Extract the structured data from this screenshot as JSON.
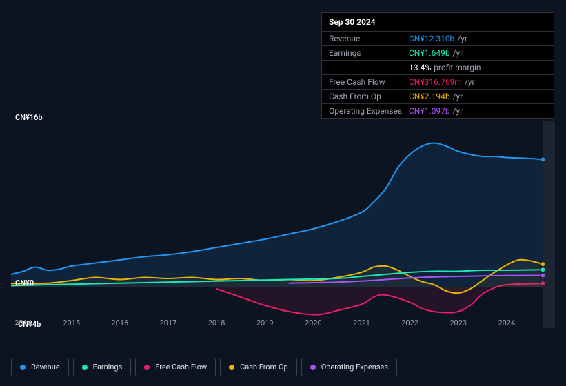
{
  "tooltip": {
    "date": "Sep 30 2024",
    "rows": [
      {
        "label": "Revenue",
        "value": "CN¥12.310b",
        "color": "#2196f3",
        "suffix": "/yr"
      },
      {
        "label": "Earnings",
        "value": "CN¥1.649b",
        "color": "#1de9b6",
        "suffix": "/yr"
      },
      {
        "label": "",
        "value": "13.4%",
        "color": "#ffffff",
        "suffix": "profit margin"
      },
      {
        "label": "Free Cash Flow",
        "value": "CN¥316.769m",
        "color": "#e91e63",
        "suffix": "/yr"
      },
      {
        "label": "Cash From Op",
        "value": "CN¥2.194b",
        "color": "#eab308",
        "suffix": "/yr"
      },
      {
        "label": "Operating Expenses",
        "value": "CN¥1.097b",
        "color": "#a855f7",
        "suffix": "/yr"
      }
    ]
  },
  "chart": {
    "type": "line",
    "background": "#0d1421",
    "y_max": 16,
    "y_min": -4,
    "y_labels": [
      {
        "text": "CN¥16b",
        "v": 16
      },
      {
        "text": "CN¥0",
        "v": 0
      },
      {
        "text": "-CN¥4b",
        "v": -4
      }
    ],
    "x_min": 2013.75,
    "x_max": 2025.0,
    "x_ticks": [
      2014,
      2015,
      2016,
      2017,
      2018,
      2019,
      2020,
      2021,
      2022,
      2023,
      2024
    ],
    "forecast_start": 2024.75,
    "series": {
      "revenue": {
        "label": "Revenue",
        "color": "#2196f3",
        "area": true,
        "area_opacity": 0.12,
        "points": [
          [
            2013.75,
            1.2
          ],
          [
            2014.0,
            1.5
          ],
          [
            2014.25,
            1.9
          ],
          [
            2014.5,
            1.6
          ],
          [
            2014.75,
            1.7
          ],
          [
            2015.0,
            2.0
          ],
          [
            2015.5,
            2.3
          ],
          [
            2016.0,
            2.6
          ],
          [
            2016.5,
            2.9
          ],
          [
            2017.0,
            3.1
          ],
          [
            2017.5,
            3.4
          ],
          [
            2018.0,
            3.8
          ],
          [
            2018.5,
            4.2
          ],
          [
            2019.0,
            4.6
          ],
          [
            2019.5,
            5.1
          ],
          [
            2020.0,
            5.6
          ],
          [
            2020.5,
            6.3
          ],
          [
            2021.0,
            7.2
          ],
          [
            2021.25,
            8.2
          ],
          [
            2021.5,
            9.5
          ],
          [
            2021.75,
            11.5
          ],
          [
            2022.0,
            12.8
          ],
          [
            2022.25,
            13.6
          ],
          [
            2022.5,
            13.9
          ],
          [
            2022.75,
            13.6
          ],
          [
            2023.0,
            13.1
          ],
          [
            2023.25,
            12.8
          ],
          [
            2023.5,
            12.6
          ],
          [
            2023.75,
            12.6
          ],
          [
            2024.0,
            12.5
          ],
          [
            2024.5,
            12.4
          ],
          [
            2024.75,
            12.31
          ]
        ]
      },
      "earnings": {
        "label": "Earnings",
        "color": "#1de9b6",
        "area": false,
        "points": [
          [
            2013.75,
            0.1
          ],
          [
            2014.5,
            0.2
          ],
          [
            2015.5,
            0.3
          ],
          [
            2016.5,
            0.4
          ],
          [
            2017.5,
            0.5
          ],
          [
            2018.5,
            0.6
          ],
          [
            2019.5,
            0.7
          ],
          [
            2020.5,
            0.8
          ],
          [
            2021.0,
            1.0
          ],
          [
            2021.5,
            1.2
          ],
          [
            2022.0,
            1.4
          ],
          [
            2022.5,
            1.5
          ],
          [
            2023.0,
            1.5
          ],
          [
            2023.5,
            1.6
          ],
          [
            2024.0,
            1.6
          ],
          [
            2024.75,
            1.65
          ]
        ]
      },
      "fcf": {
        "label": "Free Cash Flow",
        "color": "#e91e63",
        "area": true,
        "area_opacity": 0.1,
        "points": [
          [
            2018.0,
            -0.2
          ],
          [
            2018.5,
            -1.0
          ],
          [
            2019.0,
            -1.8
          ],
          [
            2019.5,
            -2.4
          ],
          [
            2020.0,
            -2.7
          ],
          [
            2020.25,
            -2.6
          ],
          [
            2020.5,
            -2.3
          ],
          [
            2021.0,
            -1.7
          ],
          [
            2021.25,
            -1.0
          ],
          [
            2021.5,
            -0.8
          ],
          [
            2022.0,
            -1.5
          ],
          [
            2022.25,
            -2.1
          ],
          [
            2022.5,
            -2.4
          ],
          [
            2022.75,
            -2.5
          ],
          [
            2023.0,
            -2.4
          ],
          [
            2023.25,
            -1.8
          ],
          [
            2023.5,
            -0.7
          ],
          [
            2023.75,
            -0.1
          ],
          [
            2024.0,
            0.2
          ],
          [
            2024.5,
            0.3
          ],
          [
            2024.75,
            0.32
          ]
        ]
      },
      "cashop": {
        "label": "Cash From Op",
        "color": "#eab308",
        "area": true,
        "area_opacity": 0.06,
        "points": [
          [
            2013.75,
            0.3
          ],
          [
            2014.5,
            0.35
          ],
          [
            2015.0,
            0.6
          ],
          [
            2015.5,
            0.9
          ],
          [
            2016.0,
            0.7
          ],
          [
            2016.5,
            0.9
          ],
          [
            2017.0,
            0.8
          ],
          [
            2017.5,
            0.9
          ],
          [
            2018.0,
            0.7
          ],
          [
            2018.5,
            0.8
          ],
          [
            2019.0,
            0.6
          ],
          [
            2019.5,
            0.7
          ],
          [
            2020.0,
            0.6
          ],
          [
            2020.5,
            0.9
          ],
          [
            2021.0,
            1.4
          ],
          [
            2021.25,
            1.9
          ],
          [
            2021.5,
            2.0
          ],
          [
            2021.75,
            1.6
          ],
          [
            2022.0,
            1.0
          ],
          [
            2022.25,
            0.5
          ],
          [
            2022.5,
            0.2
          ],
          [
            2022.75,
            -0.4
          ],
          [
            2023.0,
            -0.6
          ],
          [
            2023.25,
            -0.2
          ],
          [
            2023.5,
            0.6
          ],
          [
            2023.75,
            1.4
          ],
          [
            2024.0,
            2.1
          ],
          [
            2024.25,
            2.6
          ],
          [
            2024.5,
            2.5
          ],
          [
            2024.75,
            2.19
          ]
        ]
      },
      "opex": {
        "label": "Operating Expenses",
        "color": "#a855f7",
        "area": false,
        "points": [
          [
            2019.5,
            0.35
          ],
          [
            2020.0,
            0.4
          ],
          [
            2020.5,
            0.45
          ],
          [
            2021.0,
            0.55
          ],
          [
            2021.5,
            0.7
          ],
          [
            2022.0,
            0.85
          ],
          [
            2022.5,
            0.95
          ],
          [
            2023.0,
            1.0
          ],
          [
            2023.5,
            1.05
          ],
          [
            2024.0,
            1.08
          ],
          [
            2024.75,
            1.1
          ]
        ]
      }
    },
    "series_order": [
      "revenue",
      "fcf",
      "cashop",
      "earnings",
      "opex"
    ],
    "legend_order": [
      "revenue",
      "earnings",
      "fcf",
      "cashop",
      "opex"
    ],
    "end_markers": true
  }
}
